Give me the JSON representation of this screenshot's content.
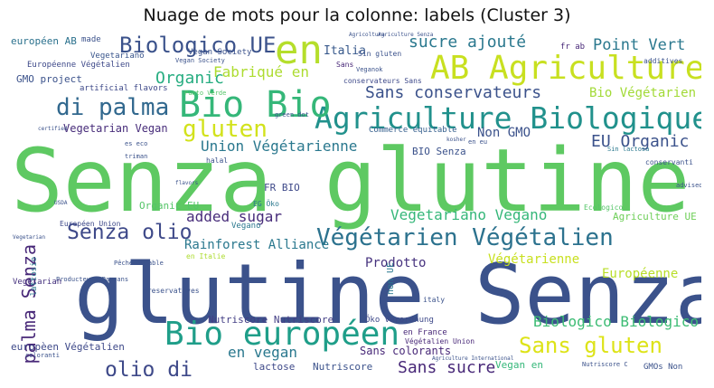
{
  "title": "Nuage de mots pour la colonne: labels (Cluster 3)",
  "words": [
    {
      "text": "Senza glutine",
      "color": "#5ec962"
    },
    {
      "text": "glutine Senza",
      "color": "#3b528b"
    },
    {
      "text": "AB Agriculture",
      "color": "#c8e020"
    },
    {
      "text": "Agriculture Biologique",
      "color": "#21918c"
    },
    {
      "text": "Bio Bio",
      "color": "#35b779"
    },
    {
      "text": "en",
      "color": "#b5de2b"
    },
    {
      "text": "Biologico UE",
      "color": "#3b528b"
    },
    {
      "text": "di palma",
      "color": "#31688e"
    },
    {
      "text": "gluten",
      "color": "#d2e21b"
    },
    {
      "text": "Végétarien Végétalien",
      "color": "#2c728e"
    },
    {
      "text": "Bio européen",
      "color": "#1f9e89"
    },
    {
      "text": "Senza olio",
      "color": "#3e4989"
    },
    {
      "text": "Sans gluten",
      "color": "#dde318"
    },
    {
      "text": "olio di",
      "color": "#3e4989"
    },
    {
      "text": "palma Senza",
      "color": "#482878"
    },
    {
      "text": "Sans conservateurs",
      "color": "#3b528b"
    },
    {
      "text": "sucre ajouté",
      "color": "#2a788e"
    },
    {
      "text": "Organic",
      "color": "#27ad81"
    },
    {
      "text": "Fabriqué en",
      "color": "#addc30"
    },
    {
      "text": "Point Vert",
      "color": "#2a788e"
    },
    {
      "text": "EU Organic",
      "color": "#3b528b"
    },
    {
      "text": "Union Végétarienne",
      "color": "#2a788e"
    },
    {
      "text": "Vegetariano Vegano",
      "color": "#35b779"
    },
    {
      "text": "Rainforest Alliance",
      "color": "#2a788e"
    },
    {
      "text": "added sugar",
      "color": "#472c7a"
    },
    {
      "text": "Biologico Biologico",
      "color": "#3dbc74"
    },
    {
      "text": "Sans sucre",
      "color": "#482878"
    },
    {
      "text": "Prodotto",
      "color": "#46327e"
    },
    {
      "text": "Végétarienne",
      "color": "#c8e020"
    },
    {
      "text": "Européenne",
      "color": "#b8de29"
    },
    {
      "text": "Bio Végétarien",
      "color": "#a2da37"
    },
    {
      "text": "Non GMO",
      "color": "#3b528b"
    },
    {
      "text": "en vegan",
      "color": "#2a788e"
    },
    {
      "text": "Sans colorants",
      "color": "#482878"
    },
    {
      "text": "Vegetarian Vegan",
      "color": "#472c7a"
    },
    {
      "text": "Italia",
      "color": "#38598c"
    },
    {
      "text": "Nutriscore Nutriscore",
      "color": "#433e85"
    },
    {
      "text": "Organic EU",
      "color": "#54c568"
    },
    {
      "text": "FR BIO",
      "color": "#3e4989"
    },
    {
      "text": "BIO Senza",
      "color": "#3b528b"
    },
    {
      "text": "Agriculture UE",
      "color": "#6ece58"
    },
    {
      "text": "européen AB",
      "color": "#2c728e"
    },
    {
      "text": "Européenne Végétalien",
      "color": "#3e4989"
    },
    {
      "text": "GMO project",
      "color": "#3b528b"
    },
    {
      "text": "Vegetariano",
      "color": "#39558c"
    },
    {
      "text": "artificial flavors",
      "color": "#3e4989"
    },
    {
      "text": "Vegan Society",
      "color": "#3b528b"
    },
    {
      "text": "conservateurs Sans",
      "color": "#3e4989"
    },
    {
      "text": "Commerce équitable",
      "color": "#355f8d"
    },
    {
      "text": "fr ab",
      "color": "#482878"
    },
    {
      "text": "made",
      "color": "#3b528b"
    },
    {
      "text": "europèen Végétalien",
      "color": "#3e4989"
    },
    {
      "text": "Sans",
      "color": "#482878"
    },
    {
      "text": "lactose",
      "color": "#3e4989"
    },
    {
      "text": "Nutriscore",
      "color": "#3b528b"
    },
    {
      "text": "Vegan en",
      "color": "#35b779"
    },
    {
      "text": "GMOs Non",
      "color": "#3b528b"
    },
    {
      "text": "halal",
      "color": "#3b528b"
    },
    {
      "text": "Vegano",
      "color": "#2a788e"
    },
    {
      "text": "Vegetarian",
      "color": "#46327e"
    },
    {
      "text": "preservatives",
      "color": "#3b528b"
    },
    {
      "text": "Öko Verordnung",
      "color": "#3e4989"
    },
    {
      "text": "en France",
      "color": "#482878"
    },
    {
      "text": "italy",
      "color": "#3b528b"
    },
    {
      "text": "non UE",
      "color": "#2a788e"
    },
    {
      "text": "lattosio",
      "color": "#2a788e"
    },
    {
      "text": "Végétalien Union",
      "color": "#482878"
    },
    {
      "text": "Sin gluten",
      "color": "#3b528b"
    },
    {
      "text": "additives",
      "color": "#3b528b"
    },
    {
      "text": "conservanti",
      "color": "#3b528b"
    },
    {
      "text": "Ecologico",
      "color": "#54c568"
    },
    {
      "text": "Européen Union",
      "color": "#3e4989"
    },
    {
      "text": "EG Öko",
      "color": "#2a788e"
    },
    {
      "text": "Pêche durable",
      "color": "#3b528b"
    },
    {
      "text": "Producteurs Paysans",
      "color": "#3b528b"
    },
    {
      "text": "en Italie",
      "color": "#addc30"
    },
    {
      "text": "es eco",
      "color": "#3b528b"
    },
    {
      "text": "triman",
      "color": "#3b528b"
    },
    {
      "text": "green dot",
      "color": "#3b528b"
    },
    {
      "text": "Vegan Society",
      "color": "#3b528b"
    },
    {
      "text": "Veganok",
      "color": "#3b528b"
    },
    {
      "text": "Punto Verde",
      "color": "#54c568"
    },
    {
      "text": "Agricoltura",
      "color": "#3b528b"
    },
    {
      "text": "Agriculture Senza",
      "color": "#3b528b"
    },
    {
      "text": "en eu",
      "color": "#3b528b"
    },
    {
      "text": "advised",
      "color": "#3b528b"
    },
    {
      "text": "coloranti",
      "color": "#3b528b"
    },
    {
      "text": "Sin lactosa",
      "color": "#2a788e"
    },
    {
      "text": "certified",
      "color": "#3b528b"
    },
    {
      "text": "USDA",
      "color": "#3b528b"
    },
    {
      "text": "flavors",
      "color": "#3b528b"
    },
    {
      "text": "kosher",
      "color": "#3b528b"
    },
    {
      "text": "Nutriscore C",
      "color": "#3b528b"
    },
    {
      "text": "Agriculture International",
      "color": "#3b528b"
    },
    {
      "text": "Vegetarian",
      "color": "#3b528b"
    }
  ]
}
